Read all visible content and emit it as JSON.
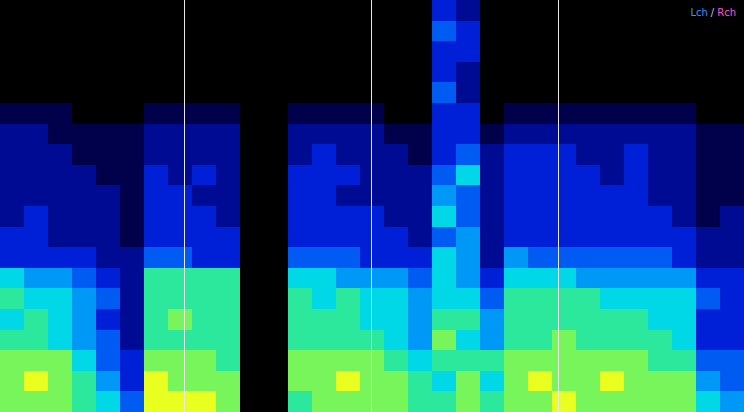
{
  "chart_data": {
    "type": "heatmap",
    "tick_labels": false,
    "xlim": [
      0,
      31
    ],
    "ylim": [
      0,
      20
    ],
    "color_range": [
      0,
      9
    ],
    "annotations": [
      {
        "text": "Lch",
        "color": "#3f8fff"
      },
      {
        "text": "/",
        "color": "#c0c0ff"
      },
      {
        "text": "Rch",
        "color": "#ff50d0"
      }
    ],
    "vlines": [
      7.67,
      15.46,
      23.25
    ],
    "cells": [
      [
        8,
        8,
        8,
        7,
        6,
        4,
        9,
        9,
        9,
        8,
        0,
        0,
        7,
        8,
        8,
        8,
        8,
        7,
        7,
        8,
        7,
        8,
        8,
        9,
        8,
        8,
        8,
        8,
        8,
        6,
        5
      ],
      [
        8,
        9,
        8,
        7,
        5,
        3,
        9,
        8,
        8,
        8,
        0,
        0,
        8,
        8,
        9,
        8,
        8,
        7,
        6,
        8,
        6,
        8,
        9,
        8,
        8,
        9,
        8,
        8,
        8,
        5,
        4
      ],
      [
        8,
        8,
        8,
        6,
        4,
        3,
        8,
        8,
        8,
        7,
        0,
        0,
        8,
        8,
        8,
        8,
        7,
        6,
        7,
        7,
        7,
        8,
        8,
        8,
        8,
        8,
        8,
        7,
        7,
        4,
        4
      ],
      [
        7,
        7,
        6,
        5,
        4,
        2,
        7,
        7,
        7,
        7,
        0,
        0,
        7,
        7,
        7,
        7,
        6,
        5,
        8,
        6,
        5,
        7,
        7,
        8,
        7,
        7,
        7,
        7,
        6,
        3,
        3
      ],
      [
        6,
        7,
        6,
        5,
        3,
        2,
        7,
        8,
        7,
        7,
        0,
        0,
        7,
        7,
        7,
        6,
        6,
        5,
        7,
        7,
        5,
        7,
        7,
        7,
        7,
        7,
        7,
        6,
        6,
        3,
        3
      ],
      [
        7,
        6,
        6,
        5,
        4,
        2,
        7,
        7,
        7,
        7,
        0,
        0,
        7,
        6,
        7,
        6,
        6,
        5,
        6,
        6,
        4,
        7,
        7,
        7,
        7,
        6,
        6,
        6,
        6,
        4,
        3
      ],
      [
        6,
        5,
        5,
        4,
        3,
        2,
        7,
        7,
        7,
        7,
        0,
        0,
        6,
        6,
        5,
        5,
        5,
        4,
        6,
        5,
        3,
        6,
        6,
        6,
        5,
        5,
        5,
        5,
        5,
        3,
        3
      ],
      [
        3,
        3,
        3,
        3,
        2,
        2,
        4,
        4,
        3,
        3,
        0,
        0,
        4,
        4,
        4,
        3,
        3,
        3,
        6,
        5,
        2,
        5,
        4,
        4,
        4,
        4,
        4,
        4,
        3,
        2,
        2
      ],
      [
        3,
        3,
        2,
        2,
        2,
        1,
        3,
        3,
        3,
        3,
        0,
        0,
        3,
        3,
        3,
        3,
        3,
        2,
        4,
        5,
        2,
        3,
        3,
        3,
        3,
        3,
        3,
        3,
        3,
        2,
        2
      ],
      [
        2,
        3,
        2,
        2,
        2,
        1,
        3,
        3,
        3,
        2,
        0,
        0,
        3,
        3,
        3,
        3,
        2,
        2,
        6,
        4,
        2,
        3,
        3,
        3,
        3,
        3,
        3,
        3,
        2,
        1,
        2
      ],
      [
        2,
        2,
        2,
        2,
        2,
        1,
        3,
        3,
        2,
        2,
        0,
        0,
        3,
        3,
        2,
        2,
        2,
        2,
        5,
        4,
        2,
        3,
        3,
        3,
        3,
        3,
        3,
        2,
        2,
        1,
        1
      ],
      [
        2,
        2,
        2,
        2,
        1,
        1,
        3,
        2,
        3,
        2,
        0,
        0,
        3,
        3,
        3,
        2,
        2,
        2,
        4,
        6,
        2,
        3,
        3,
        3,
        3,
        2,
        3,
        2,
        2,
        1,
        1
      ],
      [
        2,
        2,
        2,
        1,
        1,
        1,
        2,
        2,
        2,
        2,
        0,
        0,
        2,
        3,
        2,
        2,
        2,
        1,
        3,
        4,
        2,
        3,
        3,
        3,
        2,
        2,
        3,
        2,
        2,
        1,
        1
      ],
      [
        2,
        2,
        1,
        1,
        1,
        1,
        2,
        2,
        2,
        2,
        0,
        0,
        2,
        2,
        2,
        2,
        1,
        1,
        3,
        3,
        1,
        2,
        2,
        2,
        2,
        2,
        2,
        2,
        2,
        1,
        1
      ],
      [
        1,
        1,
        1,
        0,
        0,
        0,
        1,
        1,
        1,
        1,
        0,
        0,
        1,
        1,
        1,
        1,
        0,
        0,
        3,
        3,
        0,
        1,
        1,
        1,
        1,
        1,
        1,
        1,
        1,
        0,
        0
      ],
      [
        0,
        0,
        0,
        0,
        0,
        0,
        0,
        0,
        0,
        0,
        0,
        0,
        0,
        0,
        0,
        0,
        0,
        0,
        4,
        2,
        0,
        0,
        0,
        0,
        0,
        0,
        0,
        0,
        0,
        0,
        0
      ],
      [
        0,
        0,
        0,
        0,
        0,
        0,
        0,
        0,
        0,
        0,
        0,
        0,
        0,
        0,
        0,
        0,
        0,
        0,
        3,
        2,
        0,
        0,
        0,
        0,
        0,
        0,
        0,
        0,
        0,
        0,
        0
      ],
      [
        0,
        0,
        0,
        0,
        0,
        0,
        0,
        0,
        0,
        0,
        0,
        0,
        0,
        0,
        0,
        0,
        0,
        0,
        3,
        3,
        0,
        0,
        0,
        0,
        0,
        0,
        0,
        0,
        0,
        0,
        0
      ],
      [
        0,
        0,
        0,
        0,
        0,
        0,
        0,
        0,
        0,
        0,
        0,
        0,
        0,
        0,
        0,
        0,
        0,
        0,
        4,
        3,
        0,
        0,
        0,
        0,
        0,
        0,
        0,
        0,
        0,
        0,
        0
      ],
      [
        0,
        0,
        0,
        0,
        0,
        0,
        0,
        0,
        0,
        0,
        0,
        0,
        0,
        0,
        0,
        0,
        0,
        0,
        3,
        2,
        0,
        0,
        0,
        0,
        0,
        0,
        0,
        0,
        0,
        0,
        0
      ]
    ]
  }
}
